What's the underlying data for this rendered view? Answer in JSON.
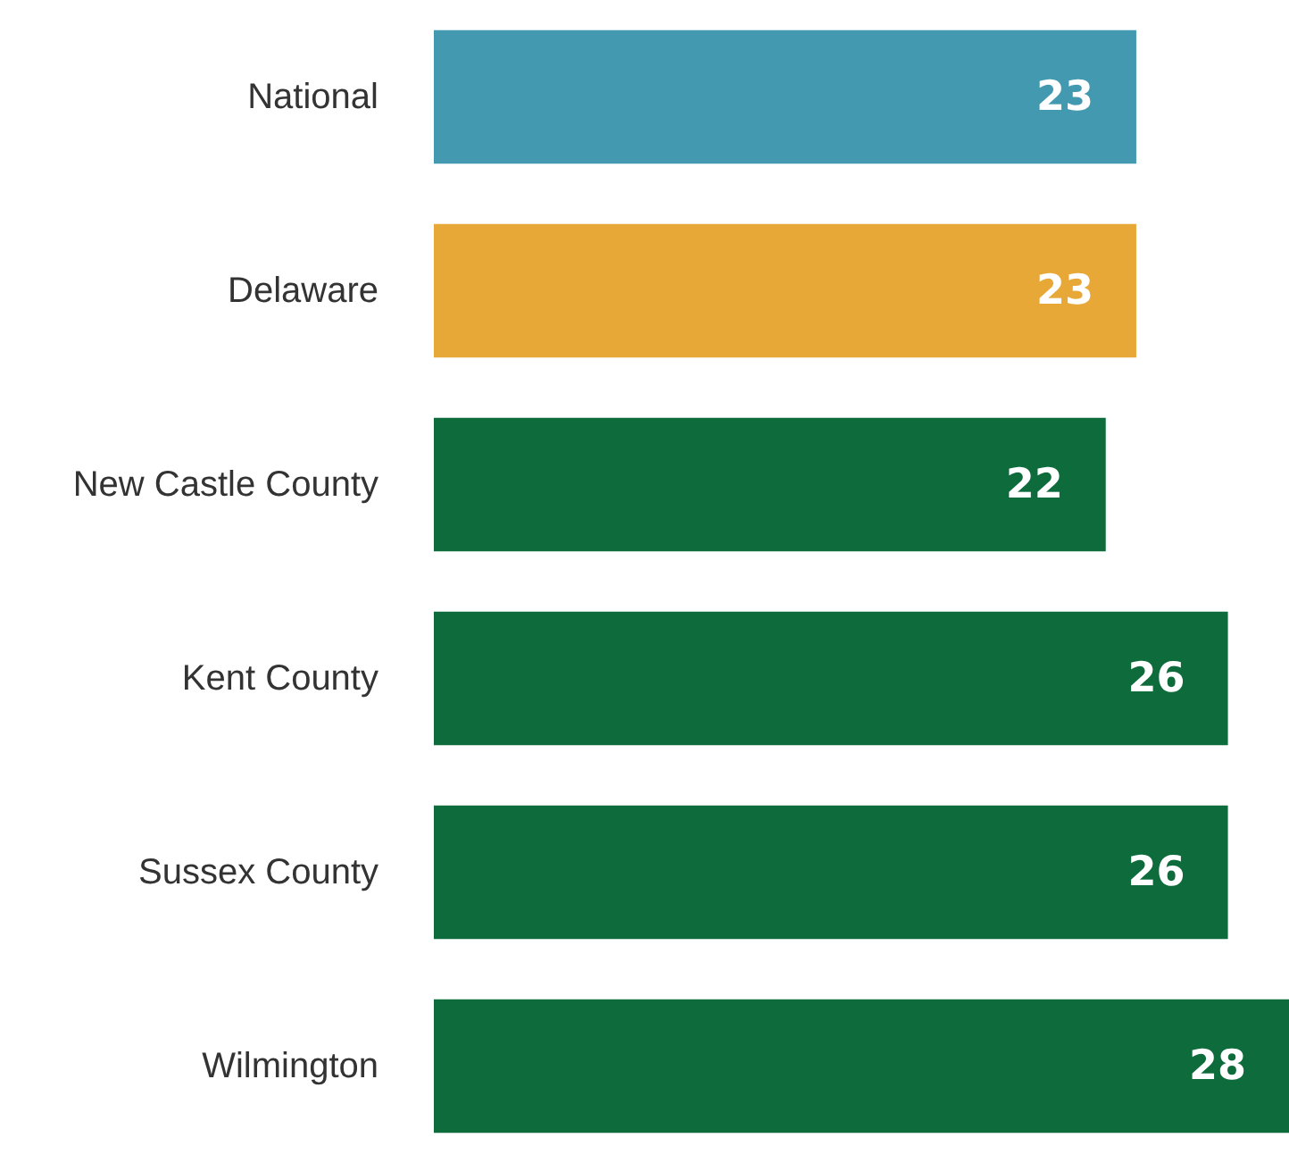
{
  "chart_data": {
    "type": "bar",
    "orientation": "horizontal",
    "categories": [
      "National",
      "Delaware",
      "New Castle County",
      "Kent County",
      "Sussex County",
      "Wilmington"
    ],
    "values": [
      23,
      23,
      22,
      26,
      26,
      28
    ],
    "colors": [
      "#4299b0",
      "#e8a838",
      "#0e6b3c",
      "#0e6b3c",
      "#0e6b3c",
      "#0e6b3c"
    ],
    "data_labels": true
  }
}
